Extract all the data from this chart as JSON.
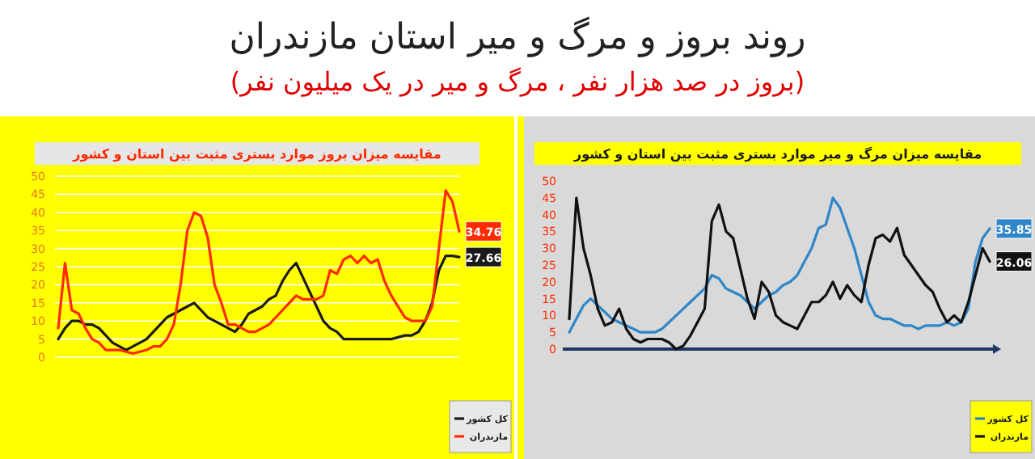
{
  "chart_data": [
    {
      "type": "other",
      "title": "روند بروز و مرگ و میر استان مازندران",
      "subtitle": "(بروز در صد هزار نفر ، مرگ و میر در یک میلیون نفر)"
    },
    {
      "type": "line",
      "title": "مقایسه میزان بروز موارد بستری مثبت بین استان و کشور",
      "categories": [
        null,
        null,
        null,
        null,
        null,
        null,
        null,
        null,
        null,
        null,
        null,
        null,
        null,
        null,
        null,
        null,
        null,
        null,
        null,
        null,
        null,
        null,
        null,
        null,
        null,
        null,
        null,
        null,
        null,
        null,
        null,
        null,
        null,
        null,
        null,
        null,
        null,
        null,
        null,
        null,
        null,
        null,
        null,
        null,
        null,
        null,
        null,
        null,
        null,
        null,
        null,
        null,
        null,
        null,
        null,
        null,
        null,
        null,
        null,
        null
      ],
      "ylim": [
        0,
        50
      ],
      "yticks": [
        0,
        5,
        10,
        15,
        20,
        25,
        30,
        35,
        40,
        45,
        50
      ],
      "grid": "y",
      "legend": "bottom right",
      "series": [
        {
          "name": "کل کشور",
          "color": "#1a1a1a",
          "values": [
            5,
            8,
            10,
            10,
            9,
            9,
            8,
            6,
            4,
            3,
            2,
            3,
            4,
            5,
            7,
            9,
            11,
            12,
            13,
            14,
            15,
            13,
            11,
            10,
            9,
            8,
            7,
            9,
            12,
            13,
            14,
            16,
            17,
            21,
            24,
            26,
            22,
            18,
            14,
            10,
            8,
            7,
            5,
            5,
            5,
            5,
            5,
            5,
            5,
            5,
            5.5,
            6,
            6,
            7,
            10,
            15,
            24,
            28,
            28,
            27.66
          ],
          "value_labels": [
            null,
            null,
            null,
            null,
            null,
            null,
            null,
            null,
            null,
            null,
            null,
            null,
            null,
            null,
            null,
            null,
            null,
            null,
            null,
            null,
            null,
            null,
            null,
            null,
            null,
            null,
            null,
            null,
            null,
            null,
            null,
            null,
            null,
            null,
            null,
            null,
            null,
            null,
            null,
            null,
            null,
            null,
            null,
            null,
            null,
            null,
            null,
            null,
            null,
            null,
            null,
            null,
            null,
            null,
            null,
            null,
            null,
            null,
            null,
            "27.66"
          ]
        },
        {
          "name": "مازندران",
          "color": "#ff2a00",
          "values": [
            8,
            26,
            13,
            12,
            8,
            5,
            4,
            2,
            2,
            2,
            1.5,
            1,
            1.5,
            2,
            3,
            3,
            5,
            9,
            20,
            35,
            40,
            39,
            33,
            20,
            15,
            9,
            9,
            8,
            7,
            7,
            8,
            9,
            11,
            13,
            15,
            17,
            16,
            16,
            16,
            17,
            24,
            23,
            27,
            28,
            26,
            28,
            26,
            27,
            21,
            17,
            14,
            11,
            10,
            10,
            10,
            14,
            30,
            46,
            43,
            34.76
          ],
          "value_labels": [
            null,
            null,
            null,
            null,
            null,
            null,
            null,
            null,
            null,
            null,
            null,
            null,
            null,
            null,
            null,
            null,
            null,
            null,
            null,
            null,
            null,
            null,
            null,
            null,
            null,
            null,
            null,
            null,
            null,
            null,
            null,
            null,
            null,
            null,
            null,
            null,
            null,
            null,
            null,
            null,
            null,
            null,
            null,
            null,
            null,
            null,
            null,
            null,
            null,
            null,
            null,
            null,
            null,
            null,
            null,
            null,
            null,
            null,
            null,
            "34.76"
          ]
        }
      ]
    },
    {
      "type": "line",
      "title": "مقایسه میزان مرگ و میر موارد بستری مثبت بین استان و کشور",
      "categories": [
        null,
        null,
        null,
        null,
        null,
        null,
        null,
        null,
        null,
        null,
        null,
        null,
        null,
        null,
        null,
        null,
        null,
        null,
        null,
        null,
        null,
        null,
        null,
        null,
        null,
        null,
        null,
        null,
        null,
        null,
        null,
        null,
        null,
        null,
        null,
        null,
        null,
        null,
        null,
        null,
        null,
        null,
        null,
        null,
        null,
        null,
        null,
        null,
        null,
        null,
        null,
        null,
        null,
        null,
        null,
        null,
        null,
        null,
        null,
        null
      ],
      "ylim": [
        0,
        50
      ],
      "yticks": [
        0,
        5,
        10,
        15,
        20,
        25,
        30,
        35,
        40,
        45,
        50
      ],
      "legend": "bottom right",
      "series": [
        {
          "name": "کل کشور",
          "color": "#2e86c8",
          "values": [
            5,
            9,
            13,
            15,
            13,
            11,
            9,
            8,
            7,
            6,
            5,
            5,
            5,
            6,
            8,
            10,
            12,
            14,
            16,
            18,
            22,
            21,
            18,
            17,
            16,
            14,
            12,
            14,
            16,
            17,
            19,
            20,
            22,
            26,
            30,
            36,
            37,
            45,
            42,
            36,
            30,
            22,
            14,
            10,
            9,
            9,
            8,
            7,
            7,
            6,
            7,
            7,
            7,
            8,
            7,
            8,
            12,
            26,
            33,
            35.85
          ],
          "value_labels": [
            null,
            null,
            null,
            null,
            null,
            null,
            null,
            null,
            null,
            null,
            null,
            null,
            null,
            null,
            null,
            null,
            null,
            null,
            null,
            null,
            null,
            null,
            null,
            null,
            null,
            null,
            null,
            null,
            null,
            null,
            null,
            null,
            null,
            null,
            null,
            null,
            null,
            null,
            null,
            null,
            null,
            null,
            null,
            null,
            null,
            null,
            null,
            null,
            null,
            null,
            null,
            null,
            null,
            null,
            null,
            null,
            null,
            null,
            null,
            "35.85"
          ]
        },
        {
          "name": "مازندران",
          "color": "#111111",
          "values": [
            9,
            45,
            30,
            22,
            12,
            7,
            8,
            12,
            6,
            3,
            2,
            3,
            3,
            3,
            2,
            0,
            1,
            4,
            8,
            12,
            38,
            43,
            35,
            33,
            24,
            15,
            9,
            20,
            17,
            10,
            8,
            7,
            6,
            10,
            14,
            14,
            16,
            20,
            15,
            19,
            16,
            14,
            25,
            33,
            34,
            32,
            36,
            28,
            25,
            22,
            19,
            17,
            12,
            8,
            10,
            8,
            14,
            22,
            30,
            26.06
          ],
          "value_labels": [
            null,
            null,
            null,
            null,
            null,
            null,
            null,
            null,
            null,
            null,
            null,
            null,
            null,
            null,
            null,
            null,
            null,
            null,
            null,
            null,
            null,
            null,
            null,
            null,
            null,
            null,
            null,
            null,
            null,
            null,
            null,
            null,
            null,
            null,
            null,
            null,
            null,
            null,
            null,
            null,
            null,
            null,
            null,
            null,
            null,
            null,
            null,
            null,
            null,
            null,
            null,
            null,
            null,
            null,
            null,
            null,
            null,
            null,
            null,
            "26.06"
          ]
        }
      ]
    }
  ]
}
